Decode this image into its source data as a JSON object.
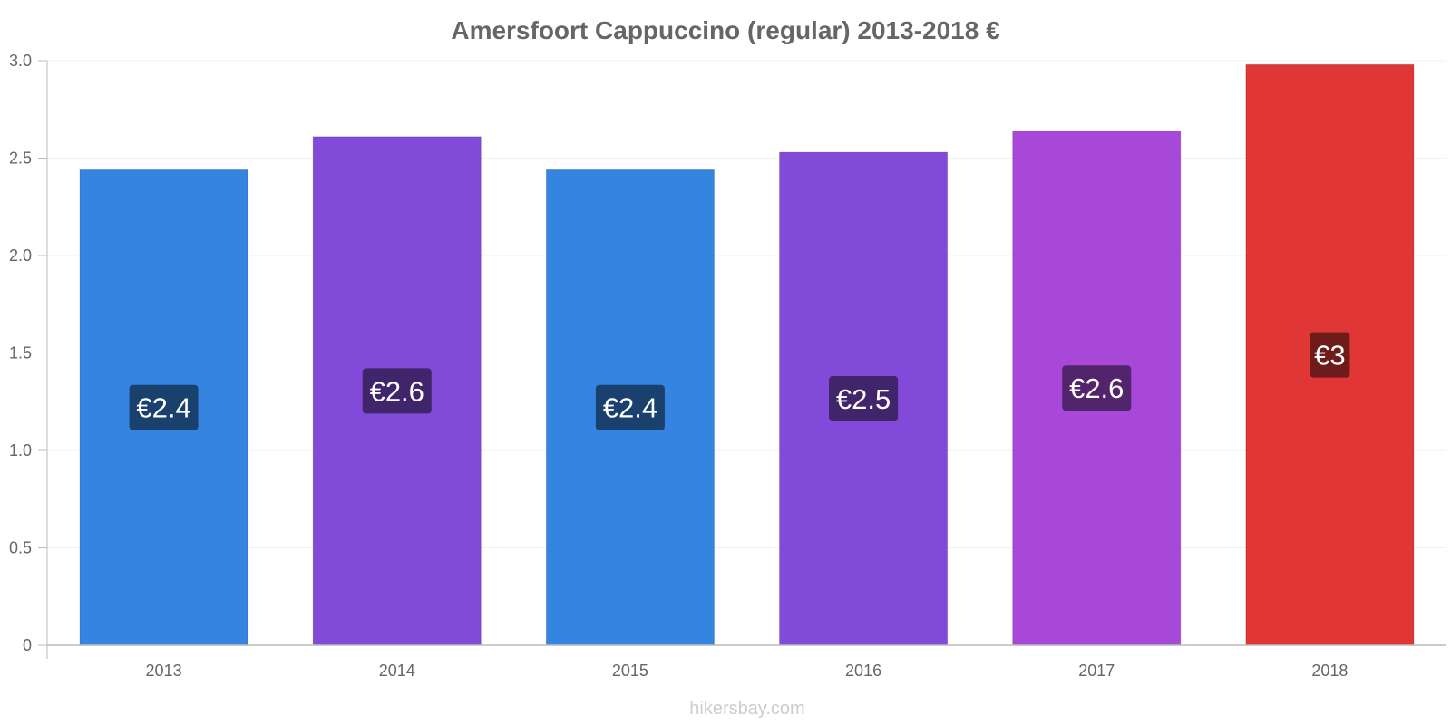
{
  "chart_data": {
    "type": "bar",
    "title": "Amersfoort Cappuccino (regular) 2013-2018 €",
    "categories": [
      "2013",
      "2014",
      "2015",
      "2016",
      "2017",
      "2018"
    ],
    "values": [
      2.44,
      2.61,
      2.44,
      2.53,
      2.64,
      2.98
    ],
    "data_labels": [
      "€2.4",
      "€2.6",
      "€2.4",
      "€2.5",
      "€2.6",
      "€3"
    ],
    "colors": [
      "#3584e0",
      "#824ad9",
      "#3584e0",
      "#824ad9",
      "#a848d9",
      "#e03636"
    ],
    "label_bg_colors": [
      "#1a416e",
      "#40256b",
      "#1a416e",
      "#40256b",
      "#52246b",
      "#6e1b1b"
    ],
    "ylim": [
      0,
      3.0
    ],
    "yticks": [
      "0",
      "0.5",
      "1.0",
      "1.5",
      "2.0",
      "2.5",
      "3.0"
    ],
    "ytick_values": [
      0,
      0.5,
      1.0,
      1.5,
      2.0,
      2.5,
      3.0
    ],
    "grid": true,
    "xlabel": "",
    "ylabel": ""
  },
  "source_text": "hikersbay.com"
}
